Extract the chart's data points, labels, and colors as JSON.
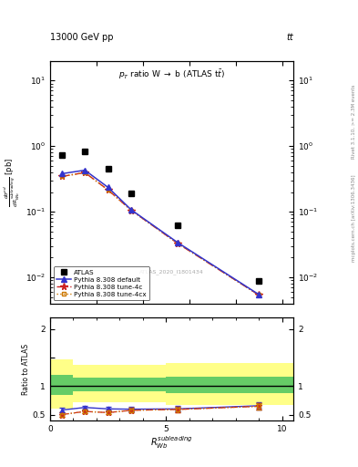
{
  "title_top": "13000 GeV pp",
  "title_top_right": "tt",
  "main_title": "p_{T} ratio W -> b (ATLAS ttbar)",
  "ylabel_main": "d / d(R) [pb]",
  "ylabel_ratio": "Ratio to ATLAS",
  "xlabel": "R_{Wb}^{subleading}",
  "watermark": "ATLAS_2020_I1801434",
  "right_label_top": "Rivet 3.1.10, >= 2.3M events",
  "right_label_bot": "mcplots.cern.ch [arXiv:1306.3436]",
  "atlas_x": [
    0.5,
    1.5,
    2.5,
    3.5,
    5.5,
    9.0
  ],
  "atlas_y": [
    0.72,
    0.83,
    0.45,
    0.19,
    0.063,
    0.0088
  ],
  "pythia_default_x": [
    0.5,
    1.5,
    2.5,
    3.5,
    5.5,
    9.0
  ],
  "pythia_default_y": [
    0.38,
    0.43,
    0.235,
    0.107,
    0.034,
    0.0055
  ],
  "pythia_4c_x": [
    0.5,
    1.5,
    2.5,
    3.5,
    5.5,
    9.0
  ],
  "pythia_4c_y": [
    0.345,
    0.395,
    0.215,
    0.105,
    0.033,
    0.0054
  ],
  "pythia_4cx_x": [
    0.5,
    1.5,
    2.5,
    3.5,
    5.5,
    9.0
  ],
  "pythia_4cx_y": [
    0.345,
    0.395,
    0.215,
    0.105,
    0.033,
    0.0054
  ],
  "ratio_default_y": [
    0.58,
    0.625,
    0.6,
    0.595,
    0.6,
    0.655
  ],
  "ratio_4c_y": [
    0.5,
    0.555,
    0.535,
    0.575,
    0.59,
    0.645
  ],
  "ratio_4cx_y": [
    0.5,
    0.555,
    0.535,
    0.575,
    0.59,
    0.645
  ],
  "ratio_err_default": [
    0.04,
    0.03,
    0.03,
    0.04,
    0.05,
    0.06
  ],
  "ratio_err_4c": [
    0.04,
    0.03,
    0.03,
    0.04,
    0.05,
    0.06
  ],
  "ratio_err_4cx": [
    0.04,
    0.03,
    0.03,
    0.04,
    0.05,
    0.06
  ],
  "band_edges": [
    0.0,
    1.0,
    2.0,
    5.0,
    9.0,
    10.5
  ],
  "band_green_lo": [
    0.84,
    0.91,
    0.91,
    0.88,
    0.88,
    0.88
  ],
  "band_green_hi": [
    1.2,
    1.14,
    1.14,
    1.16,
    1.16,
    1.16
  ],
  "band_yellow_lo": [
    0.6,
    0.71,
    0.71,
    0.67,
    0.67,
    0.67
  ],
  "band_yellow_hi": [
    1.47,
    1.37,
    1.37,
    1.4,
    1.4,
    1.4
  ],
  "xlim": [
    0,
    10.5
  ],
  "ylim_main_lo": 0.004,
  "ylim_main_hi": 20.0,
  "ylim_ratio_lo": 0.4,
  "ylim_ratio_hi": 2.2,
  "color_default": "#3333cc",
  "color_4c": "#cc2222",
  "color_4cx": "#cc7700",
  "color_atlas": "#000000",
  "color_green": "#66cc66",
  "color_yellow": "#ffff88"
}
